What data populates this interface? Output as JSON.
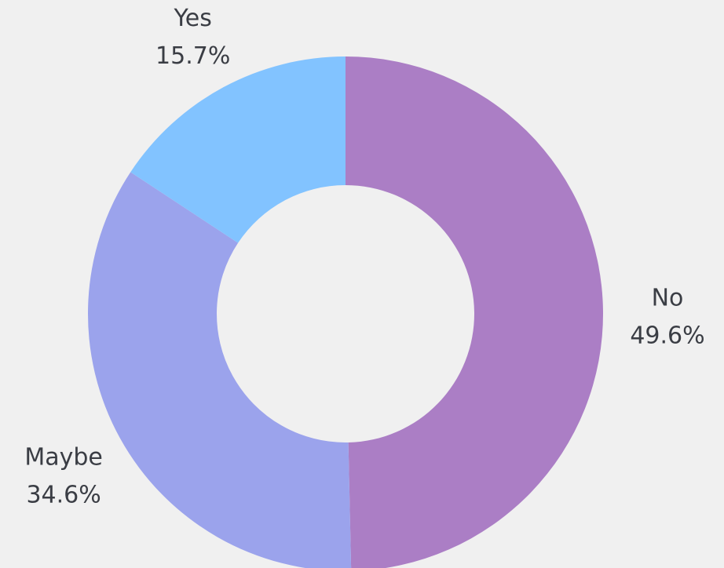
{
  "chart_data": {
    "type": "pie",
    "donut": true,
    "title": "",
    "slices": [
      {
        "label": "No",
        "value": 49.6,
        "display": "49.6%",
        "color": "#ab7ec5"
      },
      {
        "label": "Maybe",
        "value": 34.6,
        "display": "34.6%",
        "color": "#9ba3ec"
      },
      {
        "label": "Yes",
        "value": 15.7,
        "display": "15.7%",
        "color": "#82c3ff"
      }
    ],
    "start_angle_deg": 0,
    "direction": "clockwise",
    "legend": "none"
  }
}
